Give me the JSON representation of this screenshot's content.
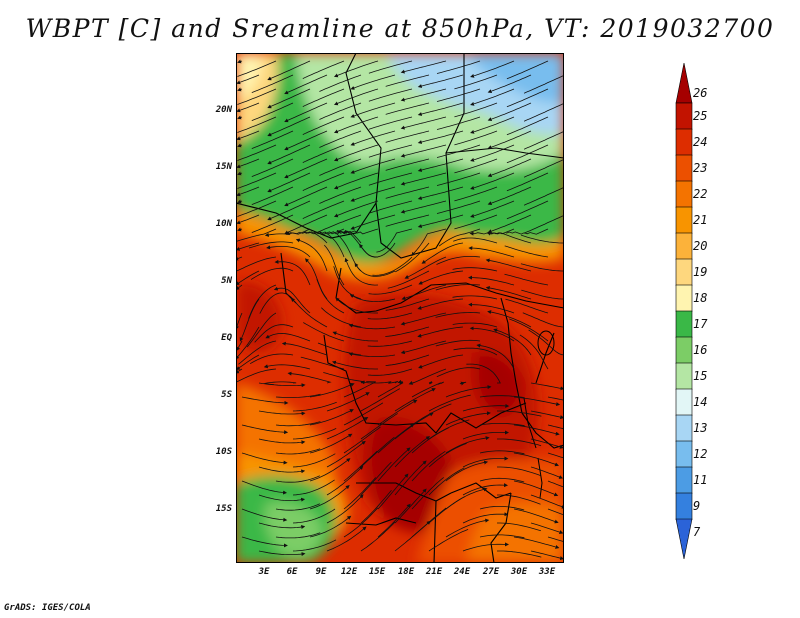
{
  "title": "WBPT [C] and Sreamline at 850hPa, VT: 2019032700",
  "credit": "GrADS: IGES/COLA",
  "lat_labels": [
    "20N",
    "15N",
    "10N",
    "5N",
    "EQ",
    "5S",
    "10S",
    "15S"
  ],
  "lon_labels": [
    "3E",
    "6E",
    "9E",
    "12E",
    "15E",
    "18E",
    "21E",
    "24E",
    "27E",
    "30E",
    "33E"
  ],
  "colorbar": {
    "levels": [
      "26",
      "25",
      "24",
      "23",
      "22",
      "21",
      "20",
      "19",
      "18",
      "17",
      "16",
      "15",
      "14",
      "13",
      "12",
      "11",
      "9",
      "7"
    ],
    "colors": [
      "#a50000",
      "#c21300",
      "#dd2d00",
      "#ec5000",
      "#f47300",
      "#f89400",
      "#fcb23a",
      "#fed77e",
      "#fff4b0",
      "#3ab847",
      "#7ccd66",
      "#b4e6a4",
      "#e2f6f6",
      "#a8d6f4",
      "#78bdee",
      "#4c9ce4",
      "#3480df",
      "#2b63d8"
    ]
  },
  "legend_order": "top-to-bottom"
}
